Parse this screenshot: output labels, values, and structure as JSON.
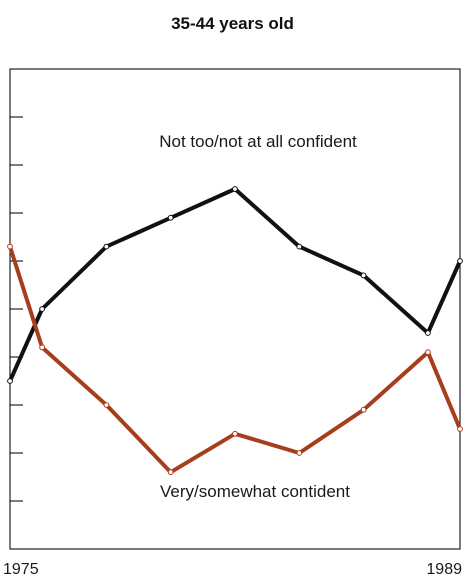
{
  "chart_data": {
    "type": "line",
    "title": "35-44 years old",
    "xlabel": "",
    "ylabel": "",
    "x": [
      1975,
      1976,
      1977,
      1978,
      1979,
      1980,
      1981,
      1982,
      1983,
      1984,
      1985,
      1986,
      1987,
      1988,
      1989
    ],
    "x_tick_labels": [
      "1975",
      "1989"
    ],
    "xlim": [
      1975,
      1989
    ],
    "ylim": [
      0,
      100
    ],
    "y_ticks": [
      10,
      20,
      30,
      40,
      50,
      60,
      70,
      80,
      90
    ],
    "grid": false,
    "series": [
      {
        "name": "Not too/not at all confident",
        "color": "#111111",
        "values": [
          35,
          50,
          null,
          63,
          null,
          69,
          null,
          75,
          null,
          63,
          null,
          57,
          null,
          45,
          60
        ]
      },
      {
        "name": "Very/somewhat contident",
        "color": "#a63d1c",
        "values": [
          63,
          42,
          null,
          30,
          null,
          16,
          null,
          24,
          null,
          20,
          null,
          29,
          null,
          41,
          25
        ]
      }
    ]
  }
}
